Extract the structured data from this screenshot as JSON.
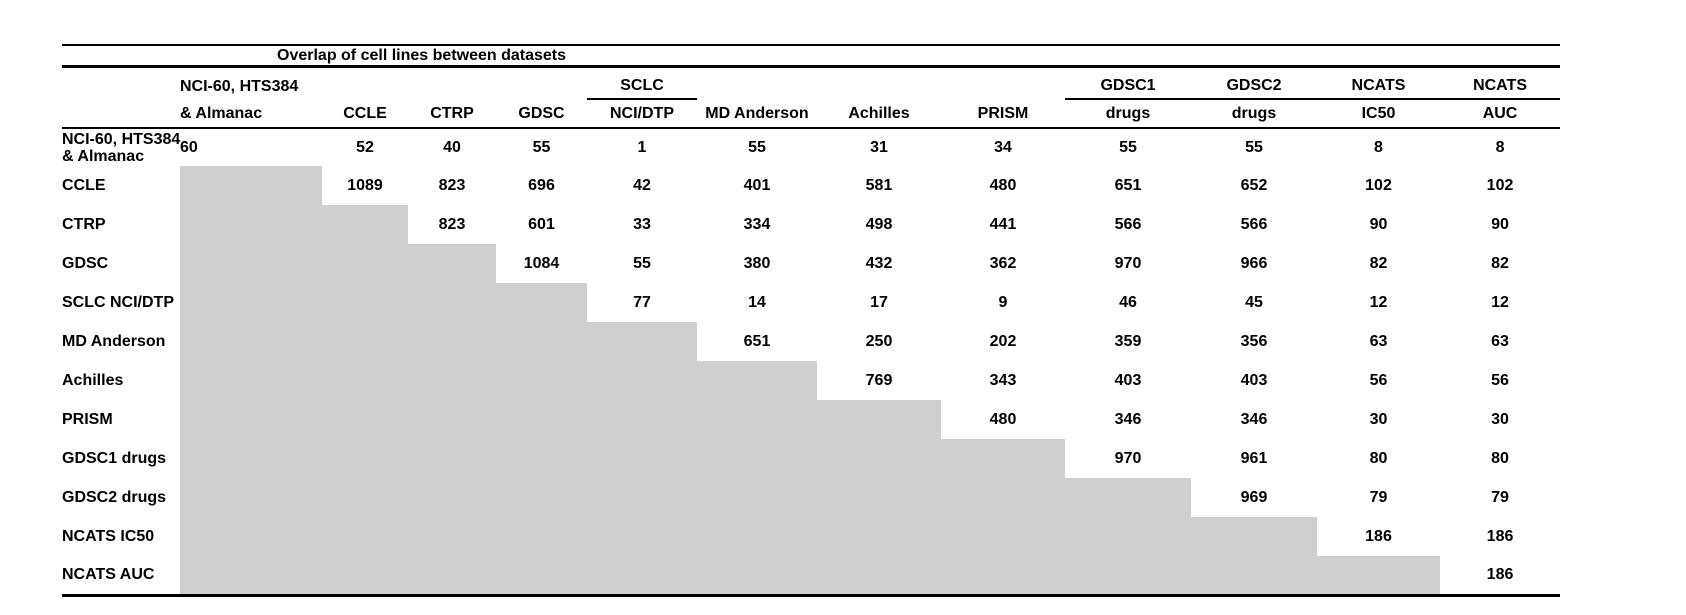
{
  "title": "Overlap of cell lines between datasets",
  "header": {
    "group_row": {
      "nci60_line1": "NCI-60, HTS384",
      "sclc": "SCLC",
      "gdsc1": "GDSC1",
      "gdsc2": "GDSC2",
      "ncats_ic50": "NCATS",
      "ncats_auc": "NCATS"
    },
    "column_row": [
      "& Almanac",
      "CCLE",
      "CTRP",
      "GDSC",
      "NCI/DTP",
      "MD Anderson",
      "Achilles",
      "PRISM",
      "drugs",
      "drugs",
      "IC50",
      "AUC"
    ]
  },
  "rows": [
    {
      "label_lines": [
        "NCI-60, HTS384",
        "& Almanac"
      ],
      "values": [
        60,
        52,
        40,
        55,
        1,
        55,
        31,
        34,
        55,
        55,
        8,
        8
      ]
    },
    {
      "label_lines": [
        "CCLE"
      ],
      "values": [
        null,
        1089,
        823,
        696,
        42,
        401,
        581,
        480,
        651,
        652,
        102,
        102
      ]
    },
    {
      "label_lines": [
        "CTRP"
      ],
      "values": [
        null,
        null,
        823,
        601,
        33,
        334,
        498,
        441,
        566,
        566,
        90,
        90
      ]
    },
    {
      "label_lines": [
        "GDSC"
      ],
      "values": [
        null,
        null,
        null,
        1084,
        55,
        380,
        432,
        362,
        970,
        966,
        82,
        82
      ]
    },
    {
      "label_lines": [
        "SCLC NCI/DTP"
      ],
      "values": [
        null,
        null,
        null,
        null,
        77,
        14,
        17,
        9,
        46,
        45,
        12,
        12
      ]
    },
    {
      "label_lines": [
        "MD Anderson"
      ],
      "values": [
        null,
        null,
        null,
        null,
        null,
        651,
        250,
        202,
        359,
        356,
        63,
        63
      ]
    },
    {
      "label_lines": [
        "Achilles"
      ],
      "values": [
        null,
        null,
        null,
        null,
        null,
        null,
        769,
        343,
        403,
        403,
        56,
        56
      ]
    },
    {
      "label_lines": [
        "PRISM"
      ],
      "values": [
        null,
        null,
        null,
        null,
        null,
        null,
        null,
        480,
        346,
        346,
        30,
        30
      ]
    },
    {
      "label_lines": [
        "GDSC1 drugs"
      ],
      "values": [
        null,
        null,
        null,
        null,
        null,
        null,
        null,
        null,
        970,
        961,
        80,
        80
      ]
    },
    {
      "label_lines": [
        "GDSC2 drugs"
      ],
      "values": [
        null,
        null,
        null,
        null,
        null,
        null,
        null,
        null,
        null,
        969,
        79,
        79
      ]
    },
    {
      "label_lines": [
        "NCATS IC50"
      ],
      "values": [
        null,
        null,
        null,
        null,
        null,
        null,
        null,
        null,
        null,
        null,
        186,
        186
      ]
    },
    {
      "label_lines": [
        "NCATS AUC"
      ],
      "values": [
        null,
        null,
        null,
        null,
        null,
        null,
        null,
        null,
        null,
        null,
        null,
        186
      ]
    }
  ],
  "colors": {
    "shade": "#CFCFCF",
    "rule": "#000000"
  }
}
